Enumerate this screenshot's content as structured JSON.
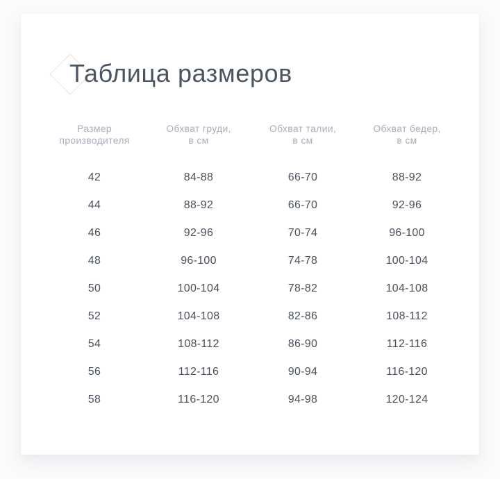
{
  "page": {
    "title": "Таблица размеров"
  },
  "colors": {
    "page_background": "#fbfbfc",
    "card_background": "#ffffff",
    "title_text": "#4b5562",
    "header_text": "#a8aebc",
    "cell_text": "#4a515c",
    "diamond_accent": "#f3ddd3"
  },
  "icons": {
    "diamond_accent": "diamond-outline"
  },
  "table": {
    "headers": [
      {
        "line1": "Размер",
        "line2": "производителя"
      },
      {
        "line1": "Обхват груди,",
        "line2": "в см"
      },
      {
        "line1": "Обхват талии,",
        "line2": "в см"
      },
      {
        "line1": "Обхват бедер,",
        "line2": "в см"
      }
    ],
    "rows": [
      {
        "size": "42",
        "chest": "84-88",
        "waist": "66-70",
        "hips": "88-92"
      },
      {
        "size": "44",
        "chest": "88-92",
        "waist": "66-70",
        "hips": "92-96"
      },
      {
        "size": "46",
        "chest": "92-96",
        "waist": "70-74",
        "hips": "96-100"
      },
      {
        "size": "48",
        "chest": "96-100",
        "waist": "74-78",
        "hips": "100-104"
      },
      {
        "size": "50",
        "chest": "100-104",
        "waist": "78-82",
        "hips": "104-108"
      },
      {
        "size": "52",
        "chest": "104-108",
        "waist": "82-86",
        "hips": "108-112"
      },
      {
        "size": "54",
        "chest": "108-112",
        "waist": "86-90",
        "hips": "112-116"
      },
      {
        "size": "56",
        "chest": "112-116",
        "waist": "90-94",
        "hips": "116-120"
      },
      {
        "size": "58",
        "chest": "116-120",
        "waist": "94-98",
        "hips": "120-124"
      }
    ]
  }
}
